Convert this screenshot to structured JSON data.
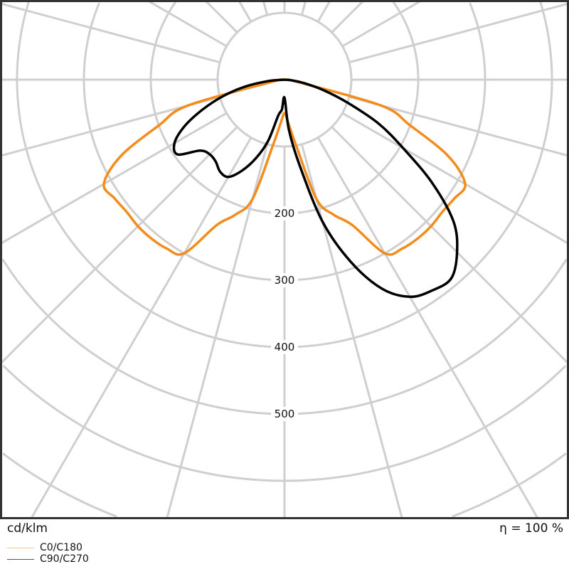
{
  "chart_data": {
    "type": "polar-line",
    "unit_label": "cd/klm",
    "efficiency_label": "η = 100 %",
    "radial_ticks": [
      200,
      300,
      400,
      500
    ],
    "grid_circles": [
      100,
      200,
      300,
      400,
      500,
      600,
      700,
      800
    ],
    "angle_step_deg": 15,
    "gamma_deg": [
      0,
      5,
      10,
      15,
      20,
      25,
      30,
      35,
      40,
      45,
      50,
      55,
      60,
      65,
      70,
      75,
      80,
      85,
      90
    ],
    "series": [
      {
        "name": "C0/C180",
        "color": "#f28c1c",
        "legend_color": "#f7c48a",
        "right": [
          50,
          65,
          100,
          185,
          215,
          240,
          300,
          308,
          310,
          310,
          308,
          310,
          312,
          270,
          200,
          150,
          20,
          5,
          0
        ],
        "left": [
          50,
          65,
          100,
          185,
          215,
          240,
          300,
          308,
          310,
          310,
          308,
          310,
          312,
          270,
          200,
          150,
          20,
          5,
          0
        ]
      },
      {
        "name": "C90/C270",
        "color": "#000000",
        "legend_color": "#555555",
        "right": [
          27,
          75,
          130,
          220,
          290,
          345,
          375,
          385,
          388,
          365,
          330,
          270,
          205,
          155,
          100,
          60,
          30,
          10,
          0
        ],
        "left": [
          27,
          45,
          55,
          95,
          125,
          150,
          168,
          168,
          160,
          158,
          165,
          195,
          190,
          165,
          130,
          95,
          60,
          25,
          0
        ]
      }
    ],
    "grid": true,
    "legend_placement": "bottom-left"
  }
}
